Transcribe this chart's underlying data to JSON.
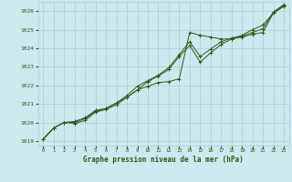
{
  "title": "Graphe pression niveau de la mer (hPa)",
  "xlabel_hours": [
    0,
    1,
    2,
    3,
    4,
    5,
    6,
    7,
    8,
    9,
    10,
    11,
    12,
    13,
    14,
    15,
    16,
    17,
    18,
    19,
    20,
    21,
    22,
    23
  ],
  "ylim": [
    1018.75,
    1026.5
  ],
  "yticks": [
    1019,
    1020,
    1021,
    1022,
    1023,
    1024,
    1025,
    1026
  ],
  "bg_color": "#cce9ee",
  "grid_color": "#aacdd4",
  "line_color": "#2d5a1b",
  "series": [
    [
      1019.1,
      1019.7,
      1020.0,
      1019.95,
      1020.1,
      1020.55,
      1020.7,
      1020.95,
      1021.35,
      1021.75,
      1021.95,
      1022.15,
      1022.2,
      1022.35,
      1024.85,
      1024.7,
      1024.6,
      1024.5,
      1024.5,
      1024.7,
      1025.0,
      1025.25,
      1025.9,
      1026.25
    ],
    [
      1019.1,
      1019.7,
      1020.0,
      1020.0,
      1020.2,
      1020.6,
      1020.75,
      1021.05,
      1021.35,
      1021.75,
      1022.2,
      1022.5,
      1022.85,
      1023.55,
      1024.15,
      1023.25,
      1023.75,
      1024.2,
      1024.5,
      1024.6,
      1024.75,
      1024.85,
      1025.9,
      1026.3
    ],
    [
      1019.1,
      1019.7,
      1020.0,
      1020.05,
      1020.25,
      1020.65,
      1020.75,
      1021.05,
      1021.45,
      1021.95,
      1022.25,
      1022.55,
      1022.95,
      1023.65,
      1024.35,
      1023.55,
      1023.95,
      1024.35,
      1024.55,
      1024.65,
      1024.85,
      1025.05,
      1025.95,
      1026.35
    ]
  ]
}
